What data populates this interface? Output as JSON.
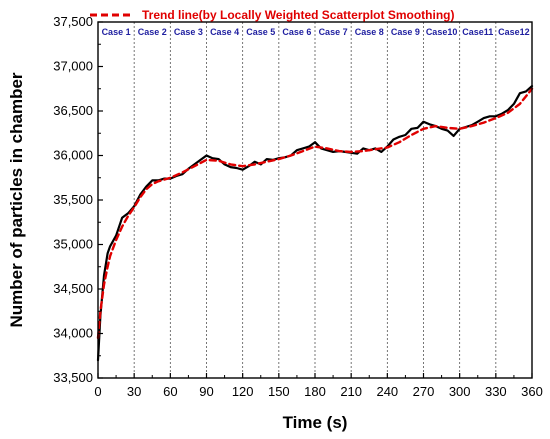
{
  "chart_data": {
    "type": "line",
    "xlabel": "Time (s)",
    "ylabel": "Number of particles in chamber",
    "xlim": [
      0,
      360
    ],
    "ylim": [
      33500,
      37500
    ],
    "x_ticks": [
      "0",
      "30",
      "60",
      "90",
      "120",
      "150",
      "180",
      "210",
      "240",
      "270",
      "300",
      "330",
      "360"
    ],
    "y_ticks": [
      "33,500",
      "34,000",
      "34,500",
      "35,000",
      "35,500",
      "36,000",
      "36,500",
      "37,000",
      "37,500"
    ],
    "grid": "vertical dotted dividers at every 30 s",
    "legend_position": "top-right",
    "cases": [
      "Case 1",
      "Case 2",
      "Case 3",
      "Case 4",
      "Case 5",
      "Case 6",
      "Case 7",
      "Case 8",
      "Case 9",
      "Case10",
      "Case11",
      "Case12"
    ],
    "series": [
      {
        "color": "#000000",
        "style": "solid",
        "x": [
          0,
          2,
          5,
          8,
          10,
          15,
          20,
          25,
          30,
          35,
          40,
          45,
          50,
          55,
          60,
          65,
          70,
          75,
          80,
          85,
          90,
          95,
          100,
          105,
          110,
          115,
          120,
          125,
          130,
          135,
          140,
          145,
          150,
          155,
          160,
          165,
          170,
          175,
          180,
          185,
          190,
          195,
          200,
          205,
          210,
          215,
          220,
          225,
          230,
          235,
          240,
          245,
          250,
          255,
          260,
          265,
          270,
          275,
          280,
          285,
          290,
          295,
          300,
          305,
          310,
          315,
          320,
          325,
          330,
          335,
          340,
          345,
          350,
          355,
          360
        ],
        "values": [
          33700,
          34200,
          34650,
          34900,
          34980,
          35100,
          35300,
          35350,
          35430,
          35560,
          35650,
          35720,
          35720,
          35740,
          35740,
          35770,
          35790,
          35850,
          35900,
          35950,
          36000,
          35970,
          35960,
          35900,
          35870,
          35860,
          35840,
          35880,
          35930,
          35900,
          35960,
          35950,
          35970,
          35980,
          36000,
          36060,
          36080,
          36100,
          36150,
          36080,
          36060,
          36040,
          36050,
          36040,
          36030,
          36020,
          36080,
          36060,
          36080,
          36040,
          36100,
          36180,
          36210,
          36230,
          36300,
          36310,
          36380,
          36350,
          36330,
          36300,
          36280,
          36220,
          36300,
          36320,
          36340,
          36380,
          36420,
          36440,
          36440,
          36470,
          36510,
          36580,
          36700,
          36720,
          36780
        ]
      },
      {
        "name": "Trend line(by Locally Weighted Scatterplot Smoothing)",
        "color": "#e00000",
        "style": "dashed",
        "x": [
          0,
          2,
          5,
          8,
          10,
          15,
          20,
          25,
          30,
          35,
          40,
          45,
          50,
          60,
          70,
          80,
          90,
          100,
          110,
          120,
          130,
          140,
          150,
          160,
          170,
          180,
          190,
          200,
          210,
          220,
          230,
          240,
          250,
          260,
          270,
          280,
          290,
          300,
          310,
          320,
          330,
          340,
          350,
          360
        ],
        "values": [
          33950,
          34250,
          34550,
          34750,
          34870,
          35050,
          35200,
          35320,
          35420,
          35530,
          35620,
          35680,
          35710,
          35750,
          35810,
          35880,
          35950,
          35940,
          35900,
          35880,
          35900,
          35930,
          35960,
          36000,
          36050,
          36100,
          36080,
          36050,
          36040,
          36050,
          36070,
          36090,
          36150,
          36230,
          36300,
          36330,
          36310,
          36300,
          36330,
          36370,
          36420,
          36480,
          36580,
          36750
        ]
      }
    ]
  }
}
